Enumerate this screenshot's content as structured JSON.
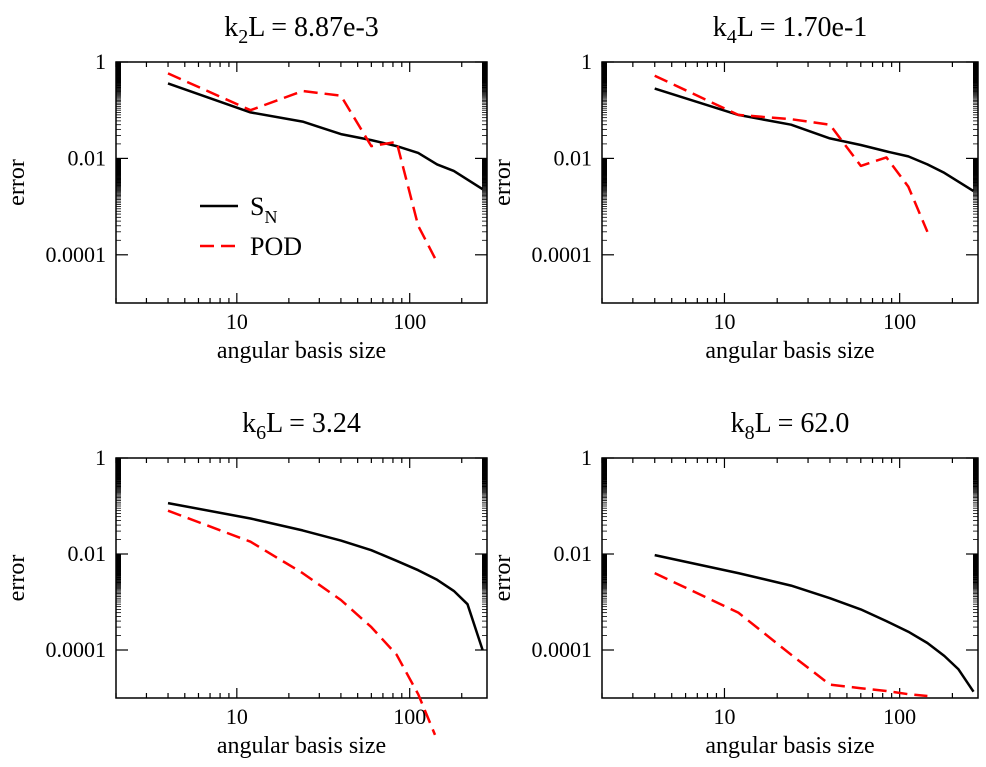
{
  "chart_data": [
    {
      "type": "line",
      "title": {
        "pre": "k",
        "sub": "2",
        "post": "L = 8.87e-3"
      },
      "xlabel": "angular basis size",
      "ylabel": "error",
      "xscale": "log",
      "yscale": "log",
      "xlim": [
        2,
        280
      ],
      "ylim": [
        1e-05,
        1
      ],
      "xticklabels": [
        "10",
        "100"
      ],
      "yticklabels": [
        "1",
        "0.01",
        "0.0001"
      ],
      "legend": {
        "placement": "lower-left",
        "show": true
      },
      "series": [
        {
          "name": "S_N",
          "color": "#000000",
          "dash": "solid",
          "x": [
            4,
            12,
            24,
            40,
            60,
            84,
            112,
            144,
            180,
            264
          ],
          "y": [
            0.36,
            0.09,
            0.058,
            0.032,
            0.024,
            0.018,
            0.013,
            0.0075,
            0.0055,
            0.0023
          ]
        },
        {
          "name": "POD",
          "color": "#ff0000",
          "dash": "dashed",
          "x": [
            4,
            12,
            24,
            40,
            60,
            84,
            112,
            144
          ],
          "y": [
            0.58,
            0.1,
            0.25,
            0.2,
            0.018,
            0.022,
            0.0004,
            7e-05
          ]
        }
      ]
    },
    {
      "type": "line",
      "title": {
        "pre": "k",
        "sub": "4",
        "post": "L = 1.70e-1"
      },
      "xlabel": "angular basis size",
      "ylabel": "error",
      "xscale": "log",
      "yscale": "log",
      "xlim": [
        2,
        280
      ],
      "ylim": [
        1e-05,
        1
      ],
      "xticklabels": [
        "10",
        "100"
      ],
      "yticklabels": [
        "1",
        "0.01",
        "0.0001"
      ],
      "legend": {
        "show": false
      },
      "series": [
        {
          "name": "S_N",
          "color": "#000000",
          "dash": "solid",
          "x": [
            4,
            12,
            24,
            40,
            60,
            84,
            112,
            144,
            180,
            264
          ],
          "y": [
            0.28,
            0.08,
            0.05,
            0.026,
            0.019,
            0.014,
            0.011,
            0.0075,
            0.005,
            0.0021
          ]
        },
        {
          "name": "POD",
          "color": "#ff0000",
          "dash": "dashed",
          "x": [
            4,
            12,
            24,
            40,
            60,
            84,
            112,
            144
          ],
          "y": [
            0.52,
            0.08,
            0.065,
            0.05,
            0.007,
            0.0105,
            0.0026,
            0.0003
          ]
        }
      ]
    },
    {
      "type": "line",
      "title": {
        "pre": "k",
        "sub": "6",
        "post": "L = 3.24"
      },
      "xlabel": "angular basis size",
      "ylabel": "error",
      "xscale": "log",
      "yscale": "log",
      "xlim": [
        2,
        280
      ],
      "ylim": [
        1e-05,
        1
      ],
      "xticklabels": [
        "10",
        "100"
      ],
      "yticklabels": [
        "1",
        "0.01",
        "0.0001"
      ],
      "legend": {
        "show": false
      },
      "series": [
        {
          "name": "S_N",
          "color": "#000000",
          "dash": "solid",
          "x": [
            4,
            12,
            24,
            40,
            60,
            84,
            112,
            144,
            180,
            216,
            264
          ],
          "y": [
            0.115,
            0.055,
            0.031,
            0.019,
            0.012,
            0.0072,
            0.0046,
            0.0029,
            0.0017,
            0.0009,
            0.0001
          ]
        },
        {
          "name": "POD",
          "color": "#ff0000",
          "dash": "dashed",
          "x": [
            4,
            12,
            24,
            40,
            60,
            84,
            112,
            140
          ],
          "y": [
            0.08,
            0.018,
            0.004,
            0.0011,
            0.0003,
            8e-05,
            1.2e-05,
            1.7e-06
          ]
        }
      ]
    },
    {
      "type": "line",
      "title": {
        "pre": "k",
        "sub": "8",
        "post": "L = 62.0"
      },
      "xlabel": "angular basis size",
      "ylabel": "error",
      "xscale": "log",
      "yscale": "log",
      "xlim": [
        2,
        280
      ],
      "ylim": [
        1e-05,
        1
      ],
      "xticklabels": [
        "10",
        "100"
      ],
      "yticklabels": [
        "1",
        "0.01",
        "0.0001"
      ],
      "legend": {
        "show": false
      },
      "series": [
        {
          "name": "S_N",
          "color": "#000000",
          "dash": "solid",
          "x": [
            4,
            12,
            24,
            40,
            60,
            84,
            112,
            144,
            180,
            216,
            264
          ],
          "y": [
            0.0095,
            0.004,
            0.0022,
            0.0012,
            0.0007,
            0.0004,
            0.00024,
            0.00014,
            7.5e-05,
            4e-05,
            1.35e-05
          ]
        },
        {
          "name": "POD",
          "color": "#ff0000",
          "dash": "dashed",
          "x": [
            4,
            12,
            24,
            40,
            60,
            84,
            112,
            144
          ],
          "y": [
            0.004,
            0.0006,
            8e-05,
            1.9e-05,
            1.6e-05,
            1.4e-05,
            1.2e-05,
            1.1e-05
          ]
        }
      ]
    }
  ]
}
